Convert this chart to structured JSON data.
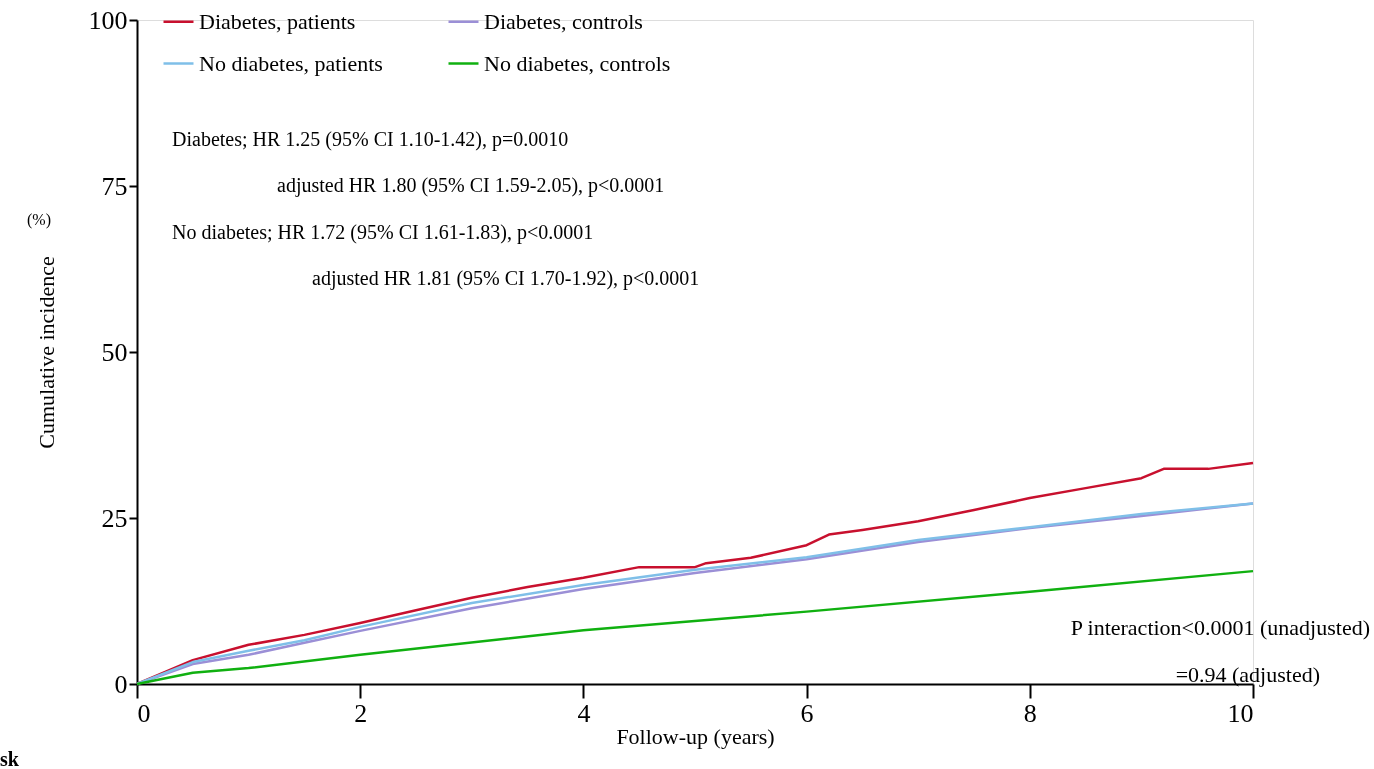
{
  "chart_data": {
    "type": "line",
    "xlabel": "Follow-up (years)",
    "ylabel": "Cumulative incidence",
    "xlim": [
      0,
      10
    ],
    "ylim": [
      0,
      100
    ],
    "xticks": [
      0,
      2,
      4,
      6,
      8,
      10
    ],
    "yticks": [
      0,
      25,
      50,
      75,
      100
    ],
    "grid": false,
    "legend": "top left",
    "marker": "none",
    "line_style": "solid",
    "series": [
      {
        "name": "Diabetes, patients",
        "color": "#c8102e",
        "x": [
          0,
          0.5,
          1,
          1.5,
          2,
          2.5,
          3,
          3.5,
          4,
          4.5,
          5,
          5.1,
          5.5,
          6,
          6.2,
          6.5,
          7,
          7.5,
          8,
          8.5,
          9,
          9.2,
          9.6,
          10
        ],
        "values": [
          0,
          3.6,
          5.9,
          7.4,
          9.2,
          11.1,
          13,
          14.6,
          16,
          17.6,
          17.6,
          18.2,
          19,
          20.9,
          22.5,
          23.2,
          24.5,
          26.2,
          28,
          29.5,
          31,
          32.4,
          32.4,
          33.3
        ]
      },
      {
        "name": "Diabetes, controls",
        "color": "#9b8fd6",
        "x": [
          0,
          0.5,
          1,
          1.5,
          2,
          3,
          4,
          5,
          6,
          7,
          8,
          9,
          10
        ],
        "values": [
          0,
          3,
          4.4,
          6.2,
          8,
          11.4,
          14.3,
          16.7,
          18.8,
          21.4,
          23.5,
          25.3,
          27.2
        ]
      },
      {
        "name": "No diabetes, patients",
        "color": "#7fbfe8",
        "x": [
          0,
          0.5,
          1,
          1.5,
          2,
          3,
          4,
          5,
          6,
          7,
          8,
          9,
          10
        ],
        "values": [
          0,
          3.3,
          5,
          6.6,
          8.6,
          12.2,
          14.9,
          17.2,
          19.1,
          21.7,
          23.6,
          25.6,
          27.2
        ]
      },
      {
        "name": "No diabetes, controls",
        "color": "#10b010",
        "x": [
          0,
          0.5,
          1,
          2,
          4,
          6,
          8,
          10
        ],
        "values": [
          0,
          1.7,
          2.4,
          4.4,
          8.1,
          10.9,
          13.9,
          17
        ]
      }
    ],
    "annotations": [
      "Diabetes; HR 1.25 (95% CI 1.10-1.42), p=0.0010",
      "adjusted HR 1.80 (95% CI 1.59-2.05), p<0.0001",
      "No diabetes; HR 1.72 (95% CI 1.61-1.83), p<0.0001",
      "adjusted HR 1.81 (95% CI 1.70-1.92), p<0.0001",
      "P interaction<0.0001 (unadjusted)",
      "=0.94 (adjusted)",
      "(%)",
      "sk"
    ]
  }
}
